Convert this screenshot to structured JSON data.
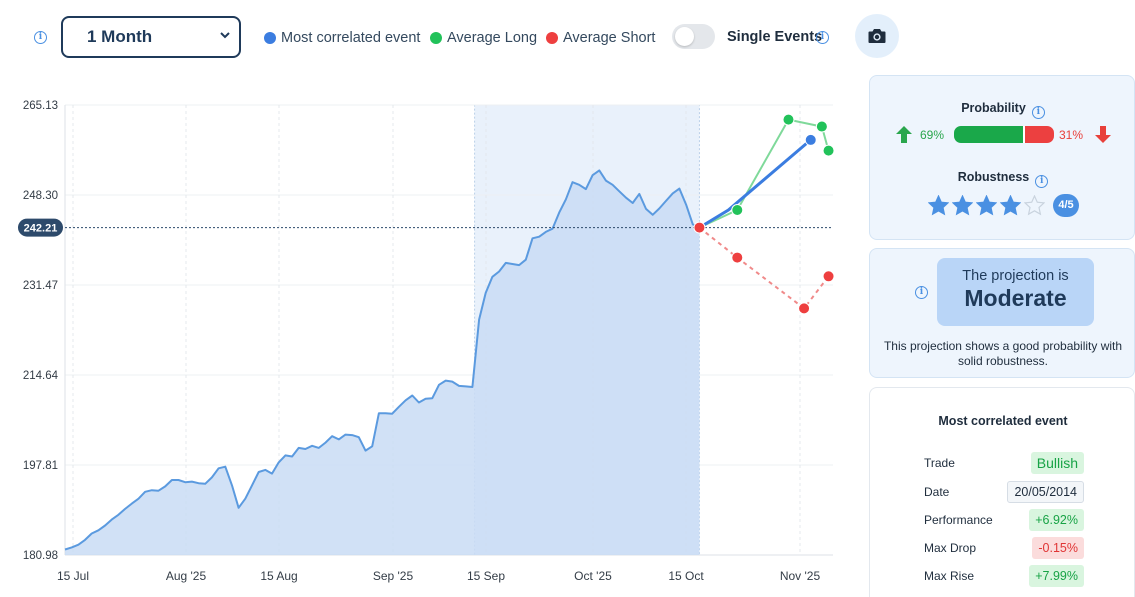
{
  "toolbar": {
    "period_selected": "1 Month",
    "legend": [
      {
        "label": "Most correlated event",
        "color": "#3b7de0"
      },
      {
        "label": "Average Long",
        "color": "#22c25a"
      },
      {
        "label": "Average Short",
        "color": "#ee3f3f"
      }
    ],
    "single_events_label": "Single Events",
    "single_events_on": false,
    "camera_icon": "camera-icon"
  },
  "chart_data": {
    "type": "area",
    "y_ticks": [
      "265.13",
      "248.30",
      "231.47",
      "214.64",
      "197.81",
      "180.98"
    ],
    "ylim": [
      180.98,
      265.13
    ],
    "x_ticks": [
      "15 Jul",
      "Aug '25",
      "15 Aug",
      "Sep '25",
      "15 Sep",
      "Oct '25",
      "15 Oct",
      "Nov '25"
    ],
    "current_value": "242.21",
    "colors": {
      "area": "#c9dcf4",
      "line": "#5b9adf",
      "highlight": "#e9f1fb"
    },
    "history": [
      [
        0,
        182.0
      ],
      [
        3,
        182.4
      ],
      [
        6,
        182.9
      ],
      [
        9,
        183.8
      ],
      [
        12,
        185.0
      ],
      [
        15,
        185.6
      ],
      [
        18,
        186.5
      ],
      [
        21,
        187.6
      ],
      [
        24,
        188.5
      ],
      [
        27,
        189.6
      ],
      [
        30,
        190.6
      ],
      [
        33,
        191.5
      ],
      [
        36,
        192.8
      ],
      [
        39,
        193.1
      ],
      [
        42,
        193.0
      ],
      [
        45,
        193.8
      ],
      [
        48,
        195.0
      ],
      [
        51,
        195.0
      ],
      [
        54,
        194.6
      ],
      [
        57,
        194.7
      ],
      [
        60,
        194.4
      ],
      [
        63,
        194.3
      ],
      [
        66,
        195.5
      ],
      [
        69,
        197.2
      ],
      [
        72,
        197.5
      ],
      [
        75,
        194.0
      ],
      [
        78,
        189.8
      ],
      [
        81,
        191.5
      ],
      [
        84,
        194.0
      ],
      [
        87,
        196.5
      ],
      [
        90,
        196.9
      ],
      [
        93,
        196.2
      ],
      [
        96,
        198.3
      ],
      [
        99,
        199.6
      ],
      [
        102,
        199.4
      ],
      [
        105,
        201.0
      ],
      [
        108,
        200.8
      ],
      [
        111,
        201.4
      ],
      [
        114,
        201.0
      ],
      [
        117,
        202.0
      ],
      [
        120,
        203.2
      ],
      [
        123,
        202.6
      ],
      [
        126,
        203.5
      ],
      [
        129,
        203.4
      ],
      [
        132,
        203.0
      ],
      [
        135,
        200.5
      ],
      [
        138,
        201.3
      ],
      [
        141,
        207.5
      ],
      [
        144,
        207.5
      ],
      [
        147,
        207.4
      ],
      [
        150,
        208.7
      ],
      [
        153,
        209.9
      ],
      [
        156,
        210.8
      ],
      [
        159,
        209.5
      ],
      [
        162,
        210.2
      ],
      [
        165,
        210.3
      ],
      [
        168,
        212.8
      ],
      [
        171,
        213.6
      ],
      [
        174,
        213.4
      ],
      [
        177,
        212.6
      ],
      [
        180,
        212.5
      ],
      [
        183,
        212.4
      ],
      [
        186,
        225.0
      ],
      [
        189,
        230.0
      ],
      [
        192,
        233.0
      ],
      [
        195,
        234.0
      ],
      [
        198,
        235.6
      ],
      [
        201,
        235.4
      ],
      [
        204,
        235.2
      ],
      [
        207,
        236.2
      ],
      [
        210,
        240.2
      ],
      [
        213,
        240.5
      ],
      [
        216,
        241.4
      ],
      [
        219,
        242.0
      ],
      [
        222,
        245.0
      ],
      [
        225,
        247.5
      ],
      [
        228,
        250.7
      ],
      [
        231,
        250.2
      ],
      [
        234,
        249.4
      ],
      [
        237,
        252.0
      ],
      [
        240,
        252.9
      ],
      [
        243,
        251.0
      ],
      [
        246,
        250.2
      ],
      [
        249,
        249.0
      ],
      [
        252,
        247.8
      ],
      [
        255,
        246.8
      ],
      [
        258,
        248.5
      ],
      [
        261,
        245.7
      ],
      [
        264,
        244.6
      ],
      [
        267,
        245.8
      ],
      [
        270,
        247.2
      ],
      [
        273,
        248.6
      ],
      [
        276,
        249.5
      ],
      [
        279,
        246.5
      ],
      [
        282,
        242.8
      ],
      [
        285,
        242.2
      ]
    ],
    "highlight_range": [
      184,
      285
    ],
    "projections": {
      "most_correlated": {
        "color": "#3b7de0",
        "points": [
          [
            285,
            242.21
          ],
          [
            298,
            245.5
          ],
          [
            335,
            258.6
          ]
        ]
      },
      "average_long": {
        "color": "#22c25a",
        "points": [
          [
            285,
            242.21
          ],
          [
            302,
            245.5
          ],
          [
            325,
            262.4
          ],
          [
            340,
            261.1
          ],
          [
            343,
            256.6
          ]
        ]
      },
      "average_short": {
        "color": "#ee3f3f",
        "points": [
          [
            285,
            242.21
          ],
          [
            302,
            236.6
          ],
          [
            332,
            227.1
          ],
          [
            343,
            233.1
          ]
        ]
      }
    }
  },
  "probability": {
    "title": "Probability",
    "long_pct": "69%",
    "short_pct": "31%",
    "long_value": 0.69
  },
  "robustness": {
    "title": "Robustness",
    "score": 4,
    "max": 5,
    "badge": "4/5"
  },
  "projection": {
    "line1": "The projection is",
    "line2": "Moderate",
    "description": "This projection shows a good probability with solid robustness."
  },
  "event": {
    "title": "Most correlated event",
    "rows": [
      {
        "key": "Trade",
        "value": "Bullish",
        "style": "green"
      },
      {
        "key": "Date",
        "value": "20/05/2014",
        "style": "date"
      },
      {
        "key": "Performance",
        "value": "+6.92%",
        "style": "green"
      },
      {
        "key": "Max Drop",
        "value": "-0.15%",
        "style": "red"
      },
      {
        "key": "Max Rise",
        "value": "+7.99%",
        "style": "green"
      }
    ]
  }
}
